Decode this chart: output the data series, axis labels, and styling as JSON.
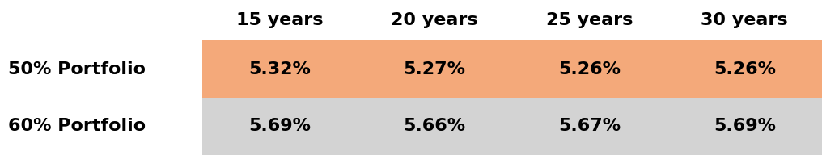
{
  "col_headers": [
    "15 years",
    "20 years",
    "25 years",
    "30 years"
  ],
  "rows": [
    {
      "label": "50% Portfolio",
      "values": [
        "5.32%",
        "5.27%",
        "5.26%",
        "5.26%"
      ],
      "bg_color": "#F4A97A"
    },
    {
      "label": "60% Portfolio",
      "values": [
        "5.69%",
        "5.66%",
        "5.67%",
        "5.69%"
      ],
      "bg_color": "#D3D3D3"
    }
  ],
  "bg_color": "#ffffff",
  "text_color": "#000000",
  "header_fontsize": 16,
  "cell_fontsize": 16,
  "label_fontsize": 16
}
